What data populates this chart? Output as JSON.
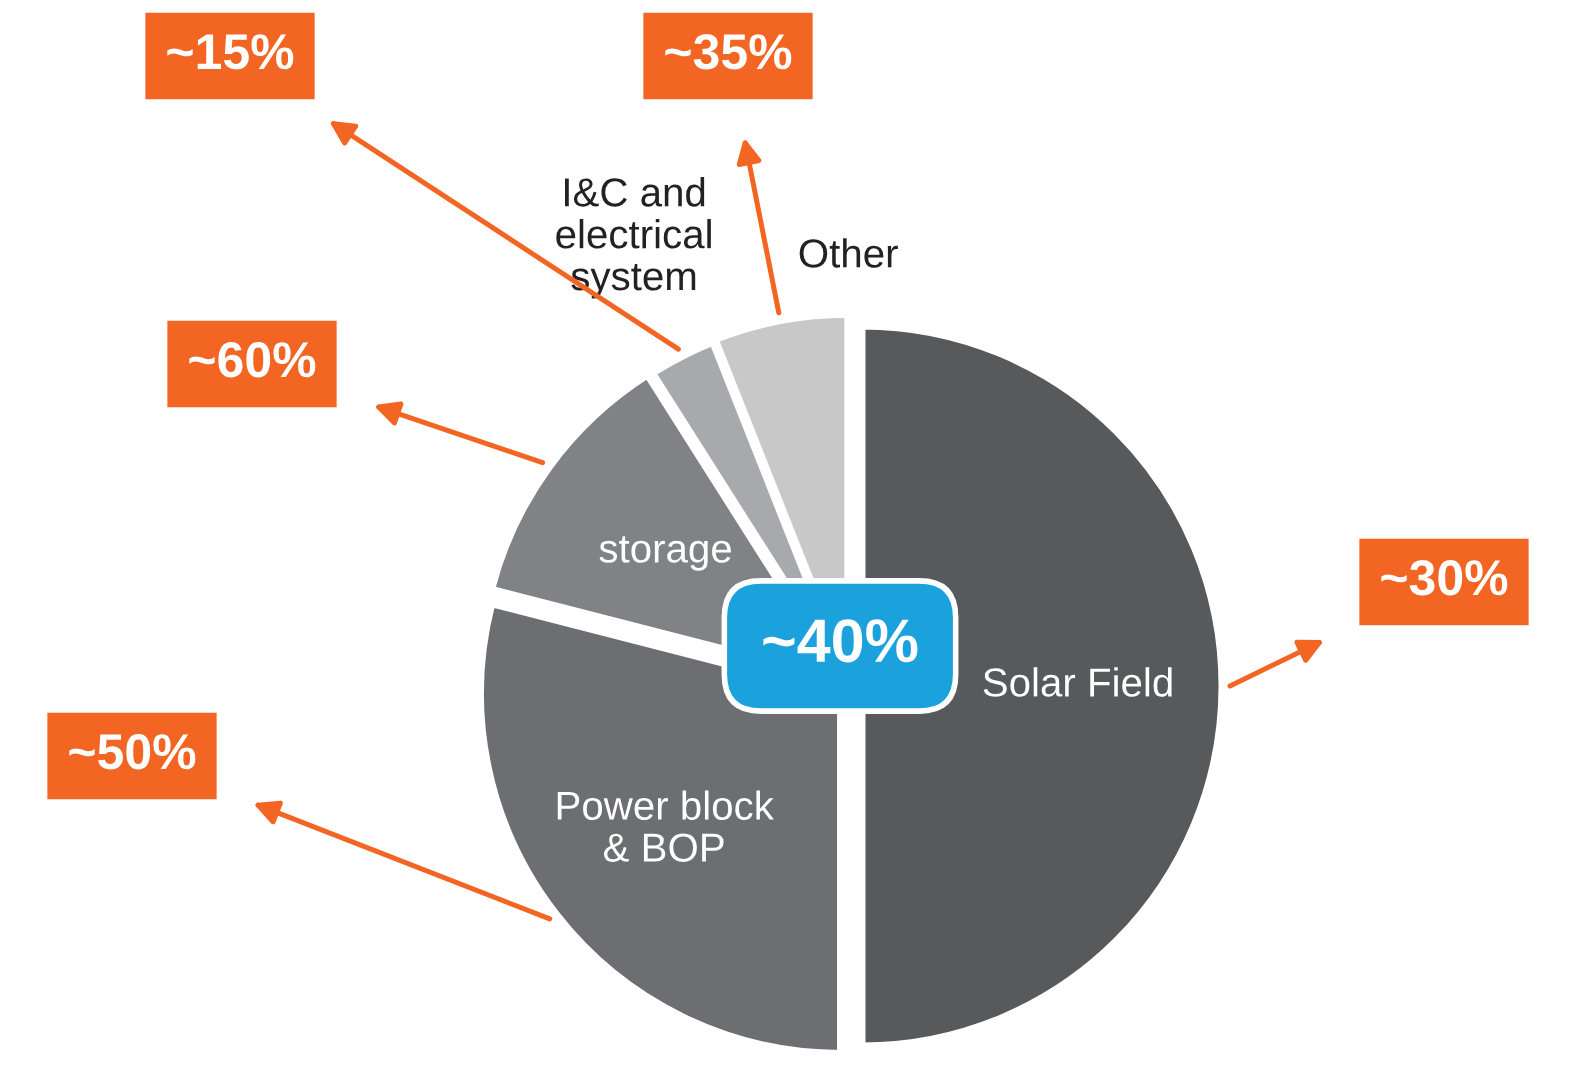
{
  "chart_data": {
    "type": "pie",
    "categories": [
      "Solar Field",
      "Power block\n& BOP",
      "storage",
      "I&C and\nelectrical\nsystem",
      "Other"
    ],
    "values": [
      50,
      29,
      12,
      3,
      6
    ],
    "colors": [
      "#58595b",
      "#6d6e71",
      "#808285",
      "#a7a9ac",
      "#c8c8c8"
    ],
    "annotations": [
      "~30%",
      "~50%",
      "~60%",
      "~15%",
      "~35%",
      "~40%"
    ],
    "legend": false
  }
}
